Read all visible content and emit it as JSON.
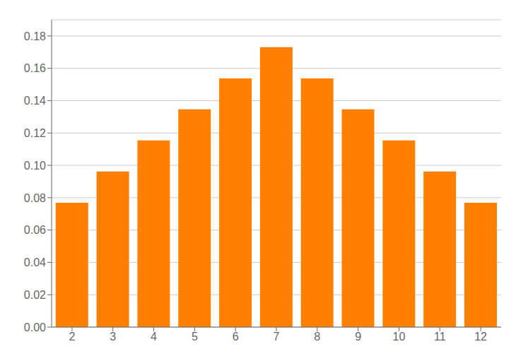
{
  "chart_data": {
    "type": "bar",
    "categories": [
      "2",
      "3",
      "4",
      "5",
      "6",
      "7",
      "8",
      "9",
      "10",
      "11",
      "12"
    ],
    "values": [
      0.0769,
      0.0962,
      0.1154,
      0.1346,
      0.1538,
      0.1731,
      0.1538,
      0.1346,
      0.1154,
      0.0962,
      0.0769
    ],
    "color": "#FF8000",
    "ylim": [
      0,
      0.19
    ],
    "yticks": [
      {
        "value": 0,
        "label": "0.00"
      },
      {
        "value": 0.02,
        "label": "0.02"
      },
      {
        "value": 0.04,
        "label": "0.04"
      },
      {
        "value": 0.06,
        "label": "0.06"
      },
      {
        "value": 0.08,
        "label": "0.08"
      },
      {
        "value": 0.1,
        "label": "0.10"
      },
      {
        "value": 0.12,
        "label": "0.12"
      },
      {
        "value": 0.14,
        "label": "0.14"
      },
      {
        "value": 0.16,
        "label": "0.16"
      },
      {
        "value": 0.18,
        "label": "0.18"
      }
    ],
    "grid": true
  }
}
